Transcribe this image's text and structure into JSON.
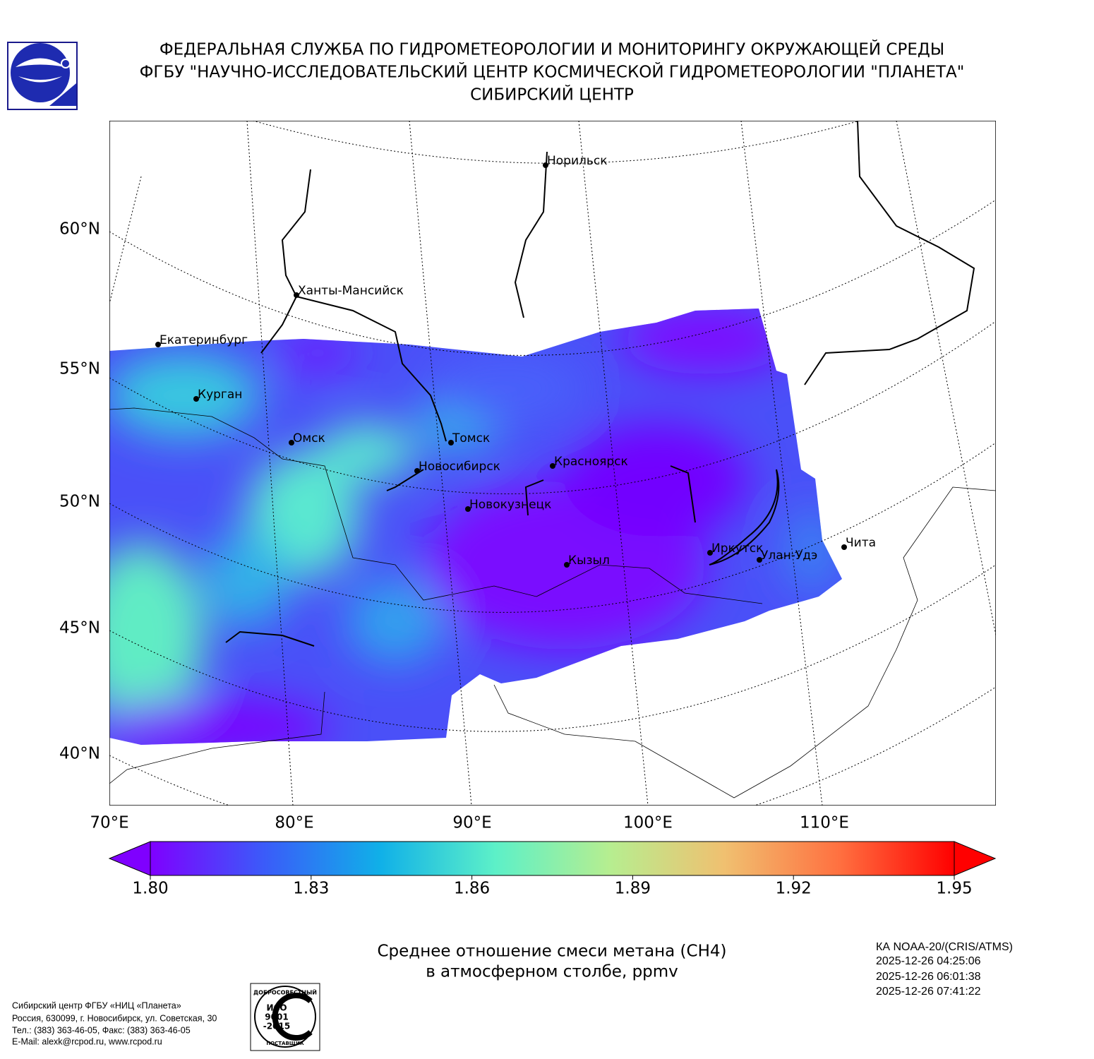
{
  "header": {
    "lines": [
      "ФЕДЕРАЛЬНАЯ СЛУЖБА ПО ГИДРОМЕТЕОРОЛОГИИ И МОНИТОРИНГУ ОКРУЖАЮЩЕЙ СРЕДЫ",
      "ФГБУ \"НАУЧНО-ИССЛЕДОВАТЕЛЬСКИЙ ЦЕНТР КОСМИЧЕСКОЙ ГИДРОМЕТЕОРОЛОГИИ \"ПЛАНЕТА\"",
      "СИБИРСКИЙ ЦЕНТР"
    ]
  },
  "map": {
    "lat_labels": [
      "60°N",
      "55°N",
      "50°N",
      "45°N",
      "40°N"
    ],
    "lon_labels": [
      "70°E",
      "80°E",
      "90°E",
      "100°E",
      "110°E"
    ],
    "cities": [
      "Норильск",
      "Ханты-Мансийск",
      "Екатеринбург",
      "Курган",
      "Омск",
      "Томск",
      "Новосибирск",
      "Красноярск",
      "Новокузнецк",
      "Кызыл",
      "Иркутск",
      "Улан-Удэ",
      "Чита"
    ]
  },
  "colorbar": {
    "range": [
      1.8,
      1.95
    ],
    "ticks": [
      {
        "value": 1.8,
        "label": "1.80"
      },
      {
        "value": 1.83,
        "label": "1.83"
      },
      {
        "value": 1.86,
        "label": "1.86"
      },
      {
        "value": 1.89,
        "label": "1.89"
      },
      {
        "value": 1.92,
        "label": "1.92"
      },
      {
        "value": 1.95,
        "label": "1.95"
      }
    ],
    "colors": [
      "#7f00ff",
      "#3a5cf9",
      "#10b0e8",
      "#5cf0c8",
      "#b6ee90",
      "#f0c070",
      "#ff7040",
      "#ff0000"
    ]
  },
  "caption": {
    "lines": [
      "Среднее отношение смеси метана (CH4)",
      "в атмосферном столбе, ppmv"
    ]
  },
  "satellite": {
    "lines": [
      "КА NOAA-20/(CRIS/ATMS)",
      "2025-12-26 04:25:06",
      "2025-12-26 06:01:38",
      "2025-12-26 07:41:22"
    ]
  },
  "footer": {
    "lines": [
      "Сибирский центр ФГБУ «НИЦ «Планета»",
      "Россия, 630099, г. Новосибирск, ул. Советская, 30",
      "Тел.: (383) 363-46-05, Факс: (383) 363-46-05",
      "E-Mail: alexk@rcpod.ru, www.rcpod.ru"
    ]
  },
  "iso": {
    "top": "ДОБРОСОВЕСТНЫЙ",
    "lines": [
      "ИСО",
      "9001",
      "-2015"
    ],
    "bottom": "ПОСТАВЩИК"
  }
}
